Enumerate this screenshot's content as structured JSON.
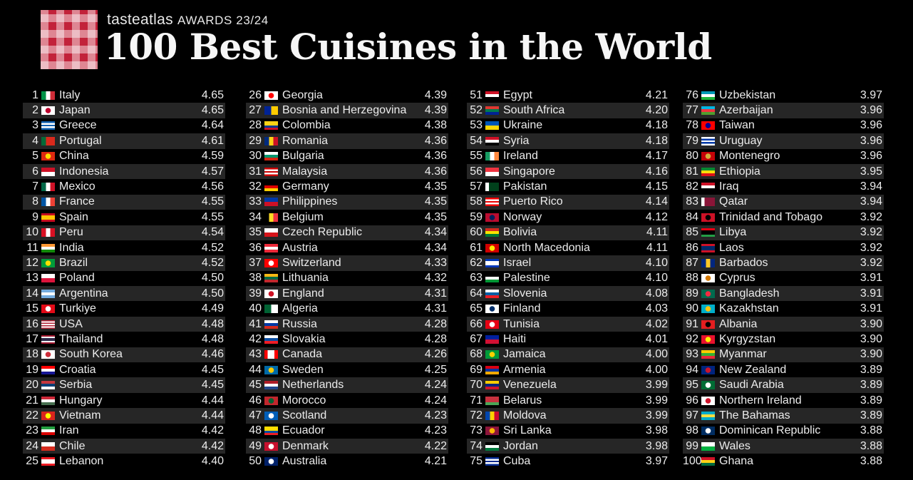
{
  "header": {
    "brand": "tasteatlas",
    "awards": "AWARDS 23/24",
    "title": "100 Best Cuisines in the World"
  },
  "columns": [
    [
      {
        "rank": "1",
        "name": "Italy",
        "score": "4.65",
        "flag": "v:#009246,#ffffff,#ce2b37"
      },
      {
        "rank": "2",
        "name": "Japan",
        "score": "4.65",
        "flag": "d:#ffffff,#bc002d"
      },
      {
        "rank": "3",
        "name": "Greece",
        "score": "4.64",
        "flag": "h:#0d5eaf,#ffffff,#0d5eaf,#ffffff,#0d5eaf"
      },
      {
        "rank": "4",
        "name": "Portugal",
        "score": "4.61",
        "flag": "v:#046a38,#da291c,#da291c"
      },
      {
        "rank": "5",
        "name": "China",
        "score": "4.59",
        "flag": "d:#de2910,#ffde00"
      },
      {
        "rank": "6",
        "name": "Indonesia",
        "score": "4.57",
        "flag": "h:#ce1126,#ffffff"
      },
      {
        "rank": "7",
        "name": "Mexico",
        "score": "4.56",
        "flag": "v:#006847,#ffffff,#ce1126"
      },
      {
        "rank": "8",
        "name": "France",
        "score": "4.55",
        "flag": "v:#0055a4,#ffffff,#ef4135"
      },
      {
        "rank": "9",
        "name": "Spain",
        "score": "4.55",
        "flag": "h:#c60b1e,#ffc400,#ffc400,#c60b1e"
      },
      {
        "rank": "10",
        "name": "Peru",
        "score": "4.54",
        "flag": "v:#d91023,#ffffff,#d91023"
      },
      {
        "rank": "11",
        "name": "India",
        "score": "4.52",
        "flag": "h:#ff9933,#ffffff,#138808"
      },
      {
        "rank": "12",
        "name": "Brazil",
        "score": "4.52",
        "flag": "d:#009c3b,#ffdf00"
      },
      {
        "rank": "13",
        "name": "Poland",
        "score": "4.50",
        "flag": "h:#ffffff,#dc143c"
      },
      {
        "rank": "14",
        "name": "Argentina",
        "score": "4.50",
        "flag": "h:#74acdf,#ffffff,#74acdf"
      },
      {
        "rank": "15",
        "name": "Turkiye",
        "score": "4.49",
        "flag": "d:#e30a17,#ffffff"
      },
      {
        "rank": "16",
        "name": "USA",
        "score": "4.48",
        "flag": "h:#b22234,#ffffff,#b22234,#ffffff,#b22234,#ffffff,#b22234"
      },
      {
        "rank": "17",
        "name": "Thailand",
        "score": "4.48",
        "flag": "h:#a51931,#f4f5f8,#2d2a4a,#2d2a4a,#f4f5f8,#a51931"
      },
      {
        "rank": "18",
        "name": "South Korea",
        "score": "4.46",
        "flag": "d:#ffffff,#cd2e3a"
      },
      {
        "rank": "19",
        "name": "Croatia",
        "score": "4.45",
        "flag": "h:#ff0000,#ffffff,#171796"
      },
      {
        "rank": "20",
        "name": "Serbia",
        "score": "4.45",
        "flag": "h:#c6363c,#0c4076,#ffffff"
      },
      {
        "rank": "21",
        "name": "Hungary",
        "score": "4.44",
        "flag": "h:#ce2939,#ffffff,#477050"
      },
      {
        "rank": "22",
        "name": "Vietnam",
        "score": "4.44",
        "flag": "d:#da251d,#ffff00"
      },
      {
        "rank": "23",
        "name": "Iran",
        "score": "4.42",
        "flag": "h:#239f40,#ffffff,#da0000"
      },
      {
        "rank": "24",
        "name": "Chile",
        "score": "4.42",
        "flag": "h:#ffffff,#d52b1e"
      },
      {
        "rank": "25",
        "name": "Lebanon",
        "score": "4.40",
        "flag": "h:#ed1c24,#ffffff,#ffffff,#ed1c24"
      }
    ],
    [
      {
        "rank": "26",
        "name": "Georgia",
        "score": "4.39",
        "flag": "d:#ffffff,#ff0000"
      },
      {
        "rank": "27",
        "name": "Bosnia and Herzegovina",
        "score": "4.39",
        "flag": "v:#002395,#fecb00"
      },
      {
        "rank": "28",
        "name": "Colombia",
        "score": "4.38",
        "flag": "h:#fcd116,#fcd116,#003893,#ce1126"
      },
      {
        "rank": "29",
        "name": "Romania",
        "score": "4.36",
        "flag": "v:#002b7f,#fcd116,#ce1126"
      },
      {
        "rank": "30",
        "name": "Bulgaria",
        "score": "4.36",
        "flag": "h:#ffffff,#00966e,#d62612"
      },
      {
        "rank": "31",
        "name": "Malaysia",
        "score": "4.36",
        "flag": "h:#cc0001,#ffffff,#cc0001,#ffffff,#cc0001"
      },
      {
        "rank": "32",
        "name": "Germany",
        "score": "4.35",
        "flag": "h:#000000,#dd0000,#ffce00"
      },
      {
        "rank": "33",
        "name": "Philippines",
        "score": "4.35",
        "flag": "h:#0038a8,#ce1126"
      },
      {
        "rank": "34",
        "name": "Belgium",
        "score": "4.35",
        "flag": "v:#000000,#fdda24,#ef3340"
      },
      {
        "rank": "35",
        "name": "Czech Republic",
        "score": "4.34",
        "flag": "h:#ffffff,#d7141a"
      },
      {
        "rank": "36",
        "name": "Austria",
        "score": "4.34",
        "flag": "h:#ed2939,#ffffff,#ed2939"
      },
      {
        "rank": "37",
        "name": "Switzerland",
        "score": "4.33",
        "flag": "d:#ff0000,#ffffff"
      },
      {
        "rank": "38",
        "name": "Lithuania",
        "score": "4.32",
        "flag": "h:#fdb913,#006a44,#c1272d"
      },
      {
        "rank": "39",
        "name": "England",
        "score": "4.31",
        "flag": "d:#ffffff,#ce1124"
      },
      {
        "rank": "40",
        "name": "Algeria",
        "score": "4.31",
        "flag": "v:#006233,#ffffff"
      },
      {
        "rank": "41",
        "name": "Russia",
        "score": "4.28",
        "flag": "h:#ffffff,#0039a6,#d52b1e"
      },
      {
        "rank": "42",
        "name": "Slovakia",
        "score": "4.28",
        "flag": "h:#ffffff,#0b4ea2,#ee1c25"
      },
      {
        "rank": "43",
        "name": "Canada",
        "score": "4.26",
        "flag": "v:#ff0000,#ffffff,#ffffff,#ff0000"
      },
      {
        "rank": "44",
        "name": "Sweden",
        "score": "4.25",
        "flag": "d:#006aa7,#fecc00"
      },
      {
        "rank": "45",
        "name": "Netherlands",
        "score": "4.24",
        "flag": "h:#ae1c28,#ffffff,#21468b"
      },
      {
        "rank": "46",
        "name": "Morocco",
        "score": "4.24",
        "flag": "d:#c1272d,#006233"
      },
      {
        "rank": "47",
        "name": "Scotland",
        "score": "4.23",
        "flag": "d:#005eb8,#ffffff"
      },
      {
        "rank": "48",
        "name": "Ecuador",
        "score": "4.23",
        "flag": "h:#ffdd00,#ffdd00,#034ea2,#ed1c24"
      },
      {
        "rank": "49",
        "name": "Denmark",
        "score": "4.22",
        "flag": "d:#c8102e,#ffffff"
      },
      {
        "rank": "50",
        "name": "Australia",
        "score": "4.21",
        "flag": "d:#012169,#ffffff"
      }
    ],
    [
      {
        "rank": "51",
        "name": "Egypt",
        "score": "4.21",
        "flag": "h:#ce1126,#ffffff,#000000"
      },
      {
        "rank": "52",
        "name": "South Africa",
        "score": "4.20",
        "flag": "h:#de3831,#007a4d,#002395"
      },
      {
        "rank": "53",
        "name": "Ukraine",
        "score": "4.18",
        "flag": "h:#0057b7,#ffd700"
      },
      {
        "rank": "54",
        "name": "Syria",
        "score": "4.18",
        "flag": "h:#ce1126,#ffffff,#000000"
      },
      {
        "rank": "55",
        "name": "Ireland",
        "score": "4.17",
        "flag": "v:#169b62,#ffffff,#ff883e"
      },
      {
        "rank": "56",
        "name": "Singapore",
        "score": "4.16",
        "flag": "h:#ef3340,#ffffff"
      },
      {
        "rank": "57",
        "name": "Pakistan",
        "score": "4.15",
        "flag": "v:#ffffff,#01411c,#01411c,#01411c"
      },
      {
        "rank": "58",
        "name": "Puerto Rico",
        "score": "4.14",
        "flag": "h:#ed0000,#ffffff,#ed0000,#ffffff,#ed0000"
      },
      {
        "rank": "59",
        "name": "Norway",
        "score": "4.12",
        "flag": "d:#ba0c2f,#00205b"
      },
      {
        "rank": "60",
        "name": "Bolivia",
        "score": "4.11",
        "flag": "h:#d52b1e,#f9e300,#007934"
      },
      {
        "rank": "61",
        "name": "North Macedonia",
        "score": "4.11",
        "flag": "d:#d20000,#ffe600"
      },
      {
        "rank": "62",
        "name": "Israel",
        "score": "4.10",
        "flag": "h:#0038b8,#ffffff,#ffffff,#0038b8"
      },
      {
        "rank": "63",
        "name": "Palestine",
        "score": "4.10",
        "flag": "h:#000000,#ffffff,#009736"
      },
      {
        "rank": "64",
        "name": "Slovenia",
        "score": "4.08",
        "flag": "h:#ffffff,#005da4,#ed1c24"
      },
      {
        "rank": "65",
        "name": "Finland",
        "score": "4.03",
        "flag": "d:#ffffff,#002f6c"
      },
      {
        "rank": "66",
        "name": "Tunisia",
        "score": "4.02",
        "flag": "d:#e70013,#ffffff"
      },
      {
        "rank": "67",
        "name": "Haiti",
        "score": "4.01",
        "flag": "h:#00209f,#d21034"
      },
      {
        "rank": "68",
        "name": "Jamaica",
        "score": "4.00",
        "flag": "d:#009b3a,#fed100"
      },
      {
        "rank": "69",
        "name": "Armenia",
        "score": "4.00",
        "flag": "h:#d90012,#0033a0,#f2a800"
      },
      {
        "rank": "70",
        "name": "Venezuela",
        "score": "3.99",
        "flag": "h:#ffcc00,#00247d,#cf142b"
      },
      {
        "rank": "71",
        "name": "Belarus",
        "score": "3.99",
        "flag": "h:#c8313e,#c8313e,#4aa657"
      },
      {
        "rank": "72",
        "name": "Moldova",
        "score": "3.99",
        "flag": "v:#0046ae,#ffd200,#cc092f"
      },
      {
        "rank": "73",
        "name": "Sri Lanka",
        "score": "3.98",
        "flag": "d:#8d153a,#ffb700"
      },
      {
        "rank": "74",
        "name": "Jordan",
        "score": "3.98",
        "flag": "h:#000000,#ffffff,#007a3d"
      },
      {
        "rank": "75",
        "name": "Cuba",
        "score": "3.97",
        "flag": "h:#002a8f,#ffffff,#002a8f,#ffffff,#002a8f"
      }
    ],
    [
      {
        "rank": "76",
        "name": "Uzbekistan",
        "score": "3.97",
        "flag": "h:#0099b5,#ffffff,#1eb53a"
      },
      {
        "rank": "77",
        "name": "Azerbaijan",
        "score": "3.96",
        "flag": "h:#00b5e2,#ef3340,#509e2f"
      },
      {
        "rank": "78",
        "name": "Taiwan",
        "score": "3.96",
        "flag": "d:#fe0000,#000095"
      },
      {
        "rank": "79",
        "name": "Uruguay",
        "score": "3.96",
        "flag": "h:#ffffff,#0038a8,#ffffff,#0038a8,#ffffff"
      },
      {
        "rank": "80",
        "name": "Montenegro",
        "score": "3.96",
        "flag": "d:#c40308,#d4af3a"
      },
      {
        "rank": "81",
        "name": "Ethiopia",
        "score": "3.95",
        "flag": "h:#078930,#fcdd09,#da121a"
      },
      {
        "rank": "82",
        "name": "Iraq",
        "score": "3.94",
        "flag": "h:#ce1126,#ffffff,#000000"
      },
      {
        "rank": "83",
        "name": "Qatar",
        "score": "3.94",
        "flag": "v:#ffffff,#8a1538,#8a1538,#8a1538"
      },
      {
        "rank": "84",
        "name": "Trinidad and Tobago",
        "score": "3.92",
        "flag": "d:#ce1126,#000000"
      },
      {
        "rank": "85",
        "name": "Libya",
        "score": "3.92",
        "flag": "h:#e70013,#000000,#000000,#239e46"
      },
      {
        "rank": "86",
        "name": "Laos",
        "score": "3.92",
        "flag": "h:#ce1126,#002868,#002868,#ce1126"
      },
      {
        "rank": "87",
        "name": "Barbados",
        "score": "3.92",
        "flag": "v:#00267f,#ffc726,#00267f"
      },
      {
        "rank": "88",
        "name": "Cyprus",
        "score": "3.91",
        "flag": "d:#ffffff,#d57800"
      },
      {
        "rank": "89",
        "name": "Bangladesh",
        "score": "3.91",
        "flag": "d:#006a4e,#f42a41"
      },
      {
        "rank": "90",
        "name": "Kazakhstan",
        "score": "3.91",
        "flag": "d:#00afca,#fec50c"
      },
      {
        "rank": "91",
        "name": "Albania",
        "score": "3.90",
        "flag": "d:#e41e20,#000000"
      },
      {
        "rank": "92",
        "name": "Kyrgyzstan",
        "score": "3.90",
        "flag": "d:#e8112d,#ffef00"
      },
      {
        "rank": "93",
        "name": "Myanmar",
        "score": "3.90",
        "flag": "h:#fecb00,#34b233,#ea2839"
      },
      {
        "rank": "94",
        "name": "New Zealand",
        "score": "3.89",
        "flag": "d:#00247d,#cc142b"
      },
      {
        "rank": "95",
        "name": "Saudi Arabia",
        "score": "3.89",
        "flag": "d:#006c35,#ffffff"
      },
      {
        "rank": "96",
        "name": "Northern Ireland",
        "score": "3.89",
        "flag": "d:#ffffff,#cf142b"
      },
      {
        "rank": "97",
        "name": "The Bahamas",
        "score": "3.89",
        "flag": "h:#00abc9,#fae042,#00abc9"
      },
      {
        "rank": "98",
        "name": "Dominican Republic",
        "score": "3.88",
        "flag": "d:#002d62,#ffffff"
      },
      {
        "rank": "99",
        "name": "Wales",
        "score": "3.88",
        "flag": "h:#ffffff,#00b140"
      },
      {
        "rank": "100",
        "name": "Ghana",
        "score": "3.88",
        "flag": "h:#ce1126,#fcd116,#006b3f"
      }
    ]
  ]
}
